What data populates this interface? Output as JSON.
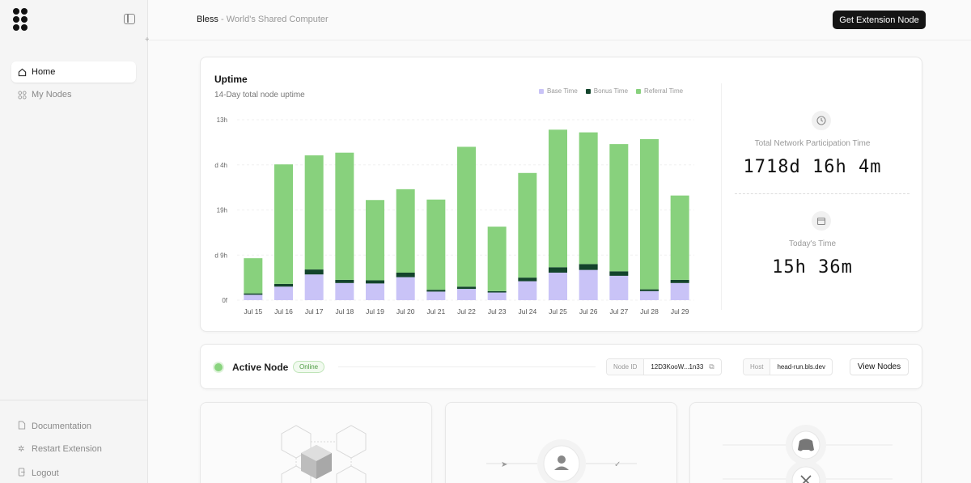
{
  "sidebar": {
    "items": [
      {
        "label": "Home",
        "icon": "home-icon",
        "active": true
      },
      {
        "label": "My Nodes",
        "icon": "nodes-icon",
        "active": false
      }
    ],
    "footer": [
      {
        "label": "Documentation",
        "icon": "document-icon"
      },
      {
        "label": "Restart Extension",
        "icon": "gear-icon"
      },
      {
        "label": "Logout",
        "icon": "logout-icon"
      }
    ]
  },
  "header": {
    "brand": "Bless",
    "separator": " - ",
    "subtitle": "World's Shared Computer",
    "cta": "Get Extension Node"
  },
  "uptime": {
    "title": "Uptime",
    "subtitle": "14-Day total node uptime",
    "legend": [
      {
        "label": "Base Time",
        "color": "#c9c3f7"
      },
      {
        "label": "Bonus Time",
        "color": "#13442c"
      },
      {
        "label": "Referral Time",
        "color": "#88d17d"
      }
    ]
  },
  "chart_data": {
    "type": "bar",
    "stacked": true,
    "title": "Uptime",
    "subtitle": "14-Day total node uptime",
    "xlabel": "",
    "ylabel": "",
    "y_ticks": [
      "0f",
      "d 9h",
      "19h",
      "d 4h",
      "13h"
    ],
    "categories": [
      "Jul 15",
      "Jul 16",
      "Jul 17",
      "Jul 18",
      "Jul 19",
      "Jul 20",
      "Jul 21",
      "Jul 22",
      "Jul 23",
      "Jul 24",
      "Jul 25",
      "Jul 26",
      "Jul 27",
      "Jul 28",
      "Jul 29"
    ],
    "ylim": [
      0,
      4
    ],
    "series": [
      {
        "name": "Base Time",
        "color": "#c9c3f7",
        "values": [
          0.12,
          0.3,
          0.57,
          0.38,
          0.37,
          0.51,
          0.19,
          0.25,
          0.17,
          0.42,
          0.61,
          0.67,
          0.54,
          0.2,
          0.38
        ]
      },
      {
        "name": "Bonus Time",
        "color": "#13442c",
        "values": [
          0.03,
          0.06,
          0.11,
          0.07,
          0.07,
          0.1,
          0.04,
          0.05,
          0.03,
          0.08,
          0.12,
          0.13,
          0.1,
          0.04,
          0.07
        ]
      },
      {
        "name": "Referral Time",
        "color": "#88d17d",
        "values": [
          0.78,
          2.65,
          2.53,
          2.82,
          1.78,
          1.85,
          2.0,
          3.1,
          1.43,
          2.32,
          3.05,
          2.92,
          2.82,
          3.33,
          1.87
        ]
      }
    ],
    "grid": true,
    "legend_position": "top-right"
  },
  "stats": {
    "total_label": "Total Network Participation Time",
    "total_value": "1718d 16h 4m",
    "today_label": "Today's Time",
    "today_value": "15h 36m"
  },
  "node": {
    "title": "Active Node",
    "status": "Online",
    "node_id_label": "Node ID",
    "node_id_value": "12D3KooW...1n33",
    "host_label": "Host",
    "host_value": "head-run.bls.dev",
    "view_button": "View Nodes"
  }
}
